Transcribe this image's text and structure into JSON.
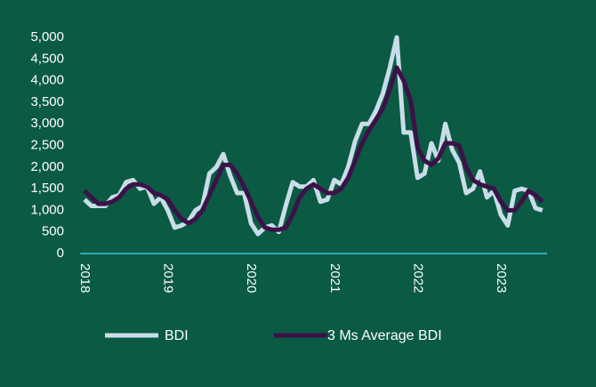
{
  "chart_data": {
    "type": "line",
    "x": [
      2018,
      2018.0833,
      2018.1667,
      2018.25,
      2018.3333,
      2018.4167,
      2018.5,
      2018.5833,
      2018.6667,
      2018.75,
      2018.8333,
      2018.9167,
      2019,
      2019.0833,
      2019.1667,
      2019.25,
      2019.3333,
      2019.4167,
      2019.5,
      2019.5833,
      2019.6667,
      2019.75,
      2019.8333,
      2019.9167,
      2020,
      2020.0833,
      2020.1667,
      2020.25,
      2020.3333,
      2020.4167,
      2020.5,
      2020.5833,
      2020.6667,
      2020.75,
      2020.8333,
      2020.9167,
      2021,
      2021.0833,
      2021.1667,
      2021.25,
      2021.3333,
      2021.4167,
      2021.5,
      2021.5833,
      2021.6667,
      2021.75,
      2021.8333,
      2021.9167,
      2022,
      2022.0833,
      2022.1667,
      2022.25,
      2022.3333,
      2022.4167,
      2022.5,
      2022.5833,
      2022.6667,
      2022.75,
      2022.8333,
      2022.9167,
      2023,
      2023.0833,
      2023.1667,
      2023.25,
      2023.3333,
      2023.4167,
      2023.5
    ],
    "series": [
      {
        "name": "BDI",
        "color": "#c9dde9",
        "values": [
          1250,
          1100,
          1100,
          1100,
          1300,
          1350,
          1650,
          1700,
          1500,
          1550,
          1150,
          1300,
          1000,
          600,
          650,
          750,
          1000,
          1100,
          1850,
          2000,
          2300,
          1800,
          1400,
          1400,
          700,
          450,
          600,
          650,
          500,
          1100,
          1650,
          1550,
          1550,
          1700,
          1200,
          1250,
          1700,
          1600,
          2000,
          2600,
          3000,
          3000,
          3300,
          3700,
          4300,
          5000,
          2800,
          2800,
          1750,
          1850,
          2550,
          2150,
          3000,
          2400,
          2100,
          1400,
          1500,
          1900,
          1300,
          1450,
          900,
          650,
          1450,
          1500,
          1450,
          1050,
          1000
        ]
      },
      {
        "name": "3 Ms Average BDI",
        "color": "#3b1248",
        "values": [
          1450,
          1300,
          1150,
          1150,
          1200,
          1300,
          1500,
          1600,
          1600,
          1550,
          1400,
          1350,
          1250,
          1000,
          800,
          700,
          800,
          1000,
          1350,
          1700,
          2050,
          2050,
          1850,
          1550,
          1200,
          850,
          600,
          550,
          550,
          600,
          900,
          1300,
          1500,
          1600,
          1500,
          1400,
          1400,
          1500,
          1750,
          2150,
          2550,
          2850,
          3100,
          3350,
          3800,
          4300,
          4000,
          3550,
          2450,
          2150,
          2050,
          2200,
          2550,
          2550,
          2500,
          2000,
          1700,
          1600,
          1550,
          1500,
          1200,
          1000,
          1000,
          1200,
          1450,
          1350,
          1200
        ]
      }
    ],
    "xlim": [
      2017.95,
      2023.6
    ],
    "xticks": [
      2018,
      2019,
      2020,
      2021,
      2022,
      2023
    ],
    "ylim": [
      0,
      5000
    ],
    "yticks": [
      0,
      500,
      {
        "value": 1000,
        "label": "1,000"
      },
      {
        "value": 1500,
        "label": "1,500"
      },
      {
        "value": 2000,
        "label": "2,000"
      },
      {
        "value": 2500,
        "label": "2,500"
      },
      {
        "value": 3000,
        "label": "3,000"
      },
      {
        "value": 3500,
        "label": "3,500"
      },
      {
        "value": 4000,
        "label": "4,000"
      },
      {
        "value": 4500,
        "label": "4,500"
      },
      {
        "value": 5000,
        "label": "5,000"
      }
    ],
    "legend": "bottom",
    "background": "#0b5a43",
    "axis_color": "#3ec6e0"
  }
}
